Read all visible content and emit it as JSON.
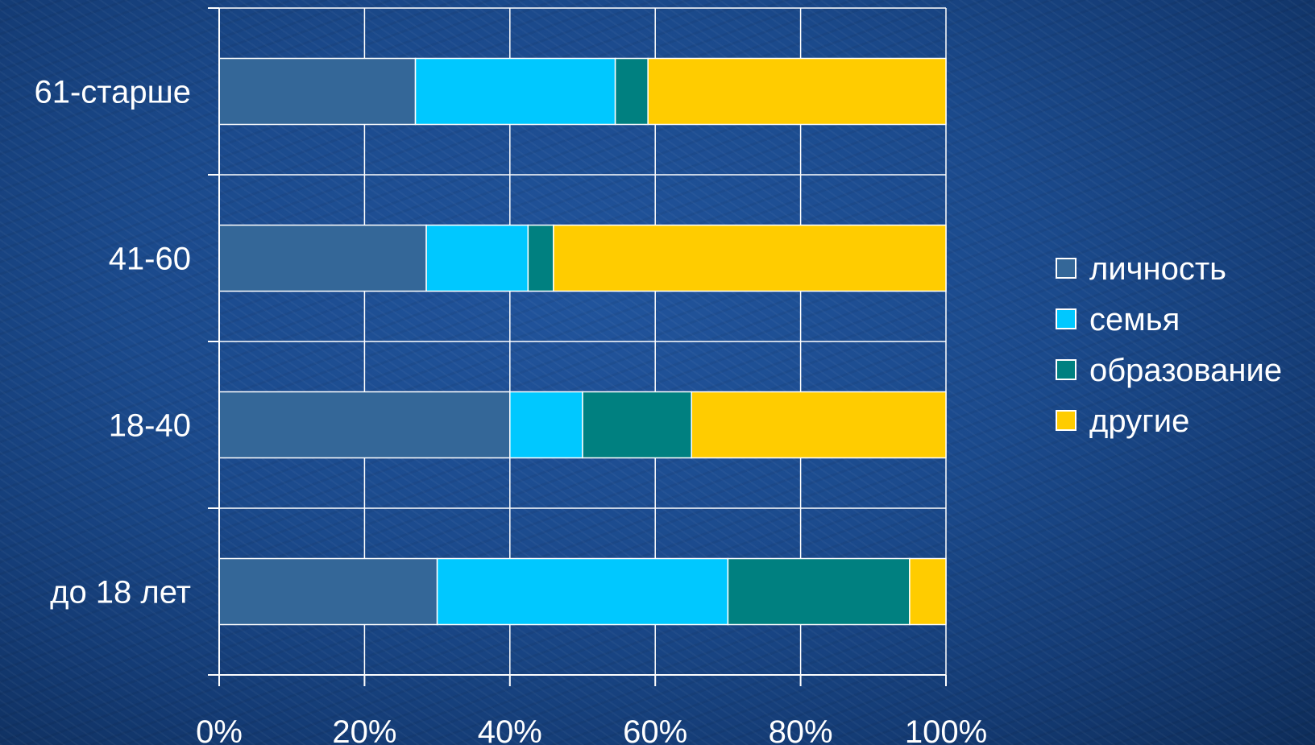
{
  "chart_data": {
    "type": "bar",
    "orientation": "horizontal",
    "stacked": "percent",
    "categories": [
      "61-старше",
      "41-60",
      "18-40",
      "до 18 лет"
    ],
    "series": [
      {
        "name": "личность",
        "color": "#346798",
        "values": [
          27,
          28.5,
          40,
          30
        ]
      },
      {
        "name": "семья",
        "color": "#00c8ff",
        "values": [
          27.5,
          14,
          10,
          40
        ]
      },
      {
        "name": "образование",
        "color": "#008080",
        "values": [
          4.5,
          3.5,
          15,
          25
        ]
      },
      {
        "name": "другие",
        "color": "#ffcc00",
        "values": [
          41,
          54,
          35,
          5
        ]
      }
    ],
    "xlim": [
      0,
      100
    ],
    "x_ticks": [
      "0%",
      "20%",
      "40%",
      "60%",
      "80%",
      "100%"
    ],
    "x_tick_values": [
      0,
      20,
      40,
      60,
      80,
      100
    ],
    "grid": true,
    "legend_position": "right"
  }
}
